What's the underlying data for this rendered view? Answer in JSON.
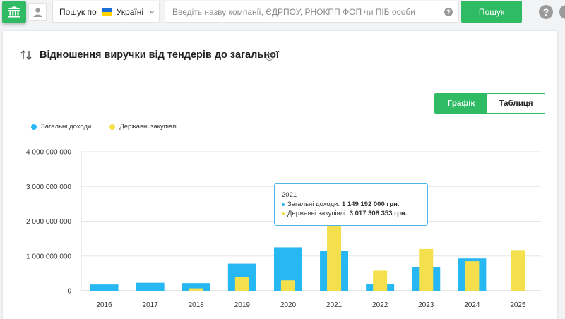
{
  "topbar": {
    "scope_label": "Пошук по",
    "scope_value": "Україні",
    "search_placeholder": "Введіть назву компанії, ЄДРПОУ, РНОКПП ФОП чи ПІБ особи",
    "search_button": "Пошук",
    "help_glyph": "?"
  },
  "section": {
    "title": "Відношення виручки від тендерів до загальної",
    "help_glyph": "?"
  },
  "view_toggle": {
    "chart_label": "Графік",
    "table_label": "Таблиця",
    "active": "chart"
  },
  "colors": {
    "accent": "#2fba64",
    "income": "#27b7f2",
    "procurement": "#f4e04d",
    "tooltip_border": "#4fb4e8"
  },
  "chart_data": {
    "type": "bar",
    "categories": [
      "2016",
      "2017",
      "2018",
      "2019",
      "2020",
      "2021",
      "2022",
      "2023",
      "2024",
      "2025"
    ],
    "series": [
      {
        "name": "Загальні доходи",
        "values": [
          180000000,
          230000000,
          220000000,
          780000000,
          1250000000,
          1149192000,
          190000000,
          680000000,
          930000000,
          0
        ]
      },
      {
        "name": "Державні закупівлі",
        "values": [
          0,
          0,
          70000000,
          400000000,
          300000000,
          3017308353,
          580000000,
          1200000000,
          850000000,
          1170000000
        ]
      }
    ],
    "yticks": [
      "0",
      "1 000 000 000",
      "2 000 000 000",
      "3 000 000 000",
      "4 000 000 000"
    ],
    "ylim": [
      0,
      4000000000
    ],
    "legend_position": "top-left",
    "grid": true,
    "tooltip": {
      "year": "2021",
      "income_label": "Загальні доходи:",
      "income_value": "1 149 192 000 грн.",
      "proc_label": "Державні закупівлі:",
      "proc_value": "3 017 308 353 грн."
    }
  }
}
